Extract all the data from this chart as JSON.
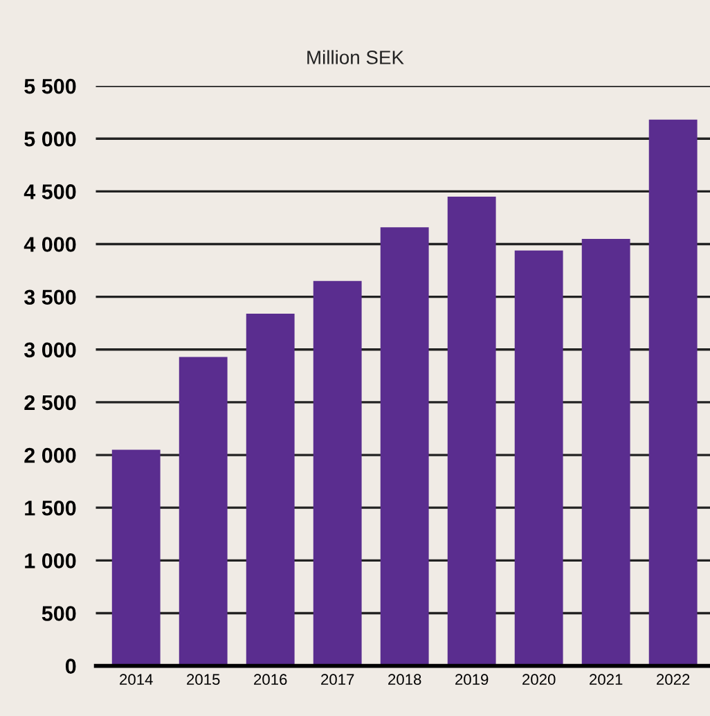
{
  "chart_data": {
    "type": "bar",
    "subtitle": "Million SEK",
    "categories": [
      "2014",
      "2015",
      "2016",
      "2017",
      "2018",
      "2019",
      "2020",
      "2021",
      "2022"
    ],
    "values": [
      2050,
      2930,
      3340,
      3650,
      4160,
      4450,
      3940,
      4050,
      5180
    ],
    "color": "#5a2d8f",
    "ylim": [
      0,
      5500
    ],
    "yticks": [
      {
        "value": 0,
        "label": "0"
      },
      {
        "value": 500,
        "label": "500"
      },
      {
        "value": 1000,
        "label": "1 000"
      },
      {
        "value": 1500,
        "label": "1 500"
      },
      {
        "value": 2000,
        "label": "2 000"
      },
      {
        "value": 2500,
        "label": "2 500"
      },
      {
        "value": 3000,
        "label": "3 000"
      },
      {
        "value": 3500,
        "label": "3 500"
      },
      {
        "value": 4000,
        "label": "4 000"
      },
      {
        "value": 4500,
        "label": "4 500"
      },
      {
        "value": 5000,
        "label": "5 000"
      },
      {
        "value": 5500,
        "label": "5 500"
      }
    ],
    "grid": "y"
  }
}
